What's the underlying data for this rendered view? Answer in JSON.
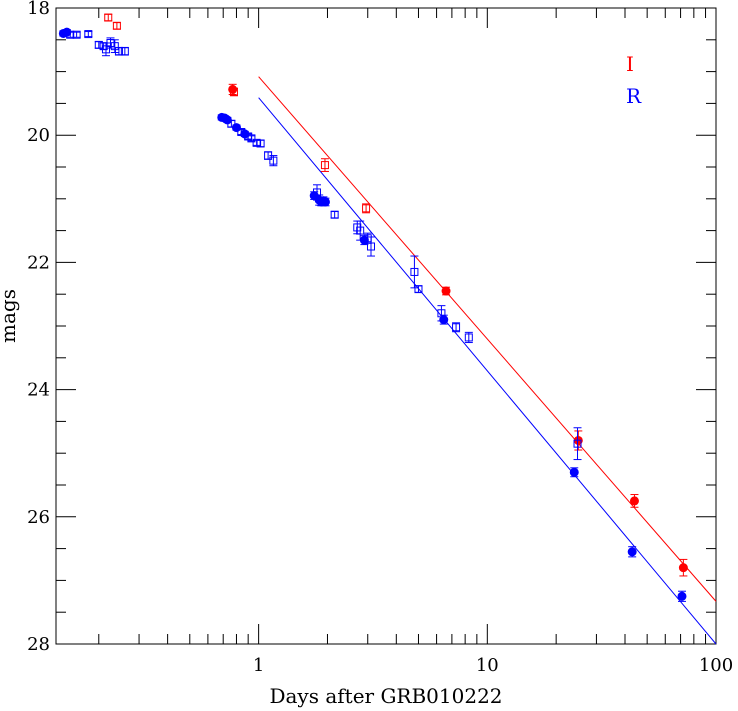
{
  "chart_data": {
    "type": "scatter",
    "title": "",
    "xlabel": "Days after GRB010222",
    "ylabel": "mags",
    "x_scale": "log",
    "xlim": [
      0.13,
      100
    ],
    "ylim": [
      28,
      18
    ],
    "y_inverted": true,
    "x_ticks": [
      1,
      10,
      100
    ],
    "x_tick_labels": [
      "1",
      "10",
      "100"
    ],
    "y_ticks": [
      18,
      20,
      22,
      24,
      26,
      28
    ],
    "y_tick_labels": [
      "18",
      "20",
      "22",
      "24",
      "26",
      "28"
    ],
    "grid": false,
    "legend_position": "top-right",
    "series": [
      {
        "name": "I",
        "color": "#ff0000",
        "points": [
          {
            "x": 0.22,
            "y": 18.15,
            "err": 0.05,
            "marker": "open-square"
          },
          {
            "x": 0.24,
            "y": 18.28,
            "err": 0.05,
            "marker": "open-square"
          },
          {
            "x": 0.77,
            "y": 19.28,
            "err": 0.08,
            "marker": "filled-circle"
          },
          {
            "x": 0.78,
            "y": 19.32,
            "err": 0.06,
            "marker": "open-square"
          },
          {
            "x": 1.95,
            "y": 20.47,
            "err": 0.1,
            "marker": "open-square"
          },
          {
            "x": 2.95,
            "y": 21.15,
            "err": 0.07,
            "marker": "open-square"
          },
          {
            "x": 6.6,
            "y": 22.45,
            "err": 0.06,
            "marker": "filled-circle"
          },
          {
            "x": 25.0,
            "y": 24.8,
            "err": 0.15,
            "marker": "filled-circle"
          },
          {
            "x": 44.0,
            "y": 25.75,
            "err": 0.1,
            "marker": "filled-circle"
          },
          {
            "x": 72.0,
            "y": 26.8,
            "err": 0.13,
            "marker": "filled-circle"
          }
        ],
        "fit_line": {
          "x": [
            1.0,
            100
          ],
          "y": [
            19.08,
            27.33
          ]
        }
      },
      {
        "name": "R",
        "color": "#0000ff",
        "points": [
          {
            "x": 0.14,
            "y": 18.4,
            "err": 0.04,
            "marker": "filled-circle"
          },
          {
            "x": 0.145,
            "y": 18.38,
            "err": 0.04,
            "marker": "filled-circle"
          },
          {
            "x": 0.15,
            "y": 18.42,
            "err": 0.04,
            "marker": "open-square"
          },
          {
            "x": 0.16,
            "y": 18.42,
            "err": 0.04,
            "marker": "open-square"
          },
          {
            "x": 0.18,
            "y": 18.41,
            "err": 0.04,
            "marker": "open-square"
          },
          {
            "x": 0.2,
            "y": 18.58,
            "err": 0.05,
            "marker": "open-square"
          },
          {
            "x": 0.21,
            "y": 18.6,
            "err": 0.05,
            "marker": "open-square"
          },
          {
            "x": 0.215,
            "y": 18.65,
            "err": 0.1,
            "marker": "open-square"
          },
          {
            "x": 0.225,
            "y": 18.55,
            "err": 0.08,
            "marker": "open-square"
          },
          {
            "x": 0.235,
            "y": 18.6,
            "err": 0.1,
            "marker": "open-square"
          },
          {
            "x": 0.245,
            "y": 18.68,
            "err": 0.06,
            "marker": "open-square"
          },
          {
            "x": 0.26,
            "y": 18.68,
            "err": 0.06,
            "marker": "open-square"
          },
          {
            "x": 0.69,
            "y": 19.72,
            "err": 0.04,
            "marker": "filled-circle"
          },
          {
            "x": 0.71,
            "y": 19.73,
            "err": 0.04,
            "marker": "filled-circle"
          },
          {
            "x": 0.73,
            "y": 19.76,
            "err": 0.04,
            "marker": "filled-circle"
          },
          {
            "x": 0.76,
            "y": 19.82,
            "err": 0.05,
            "marker": "open-square"
          },
          {
            "x": 0.8,
            "y": 19.88,
            "err": 0.04,
            "marker": "filled-circle"
          },
          {
            "x": 0.84,
            "y": 19.95,
            "err": 0.04,
            "marker": "open-square"
          },
          {
            "x": 0.87,
            "y": 19.98,
            "err": 0.04,
            "marker": "filled-circle"
          },
          {
            "x": 0.9,
            "y": 20.02,
            "err": 0.04,
            "marker": "open-square"
          },
          {
            "x": 0.93,
            "y": 20.05,
            "err": 0.04,
            "marker": "open-square"
          },
          {
            "x": 0.98,
            "y": 20.12,
            "err": 0.04,
            "marker": "open-square"
          },
          {
            "x": 1.02,
            "y": 20.13,
            "err": 0.05,
            "marker": "open-square"
          },
          {
            "x": 1.1,
            "y": 20.32,
            "err": 0.06,
            "marker": "open-square"
          },
          {
            "x": 1.16,
            "y": 20.4,
            "err": 0.08,
            "marker": "open-square"
          },
          {
            "x": 1.75,
            "y": 20.95,
            "err": 0.06,
            "marker": "filled-circle"
          },
          {
            "x": 1.8,
            "y": 20.9,
            "err": 0.12,
            "marker": "open-square"
          },
          {
            "x": 1.84,
            "y": 21.02,
            "err": 0.08,
            "marker": "filled-circle"
          },
          {
            "x": 1.88,
            "y": 21.05,
            "err": 0.06,
            "marker": "filled-circle"
          },
          {
            "x": 1.92,
            "y": 21.03,
            "err": 0.06,
            "marker": "filled-circle"
          },
          {
            "x": 1.96,
            "y": 21.05,
            "err": 0.06,
            "marker": "filled-circle"
          },
          {
            "x": 2.15,
            "y": 21.25,
            "err": 0.05,
            "marker": "open-square"
          },
          {
            "x": 2.7,
            "y": 21.45,
            "err": 0.1,
            "marker": "open-square"
          },
          {
            "x": 2.78,
            "y": 21.5,
            "err": 0.15,
            "marker": "open-square"
          },
          {
            "x": 2.9,
            "y": 21.65,
            "err": 0.07,
            "marker": "filled-circle"
          },
          {
            "x": 3.0,
            "y": 21.62,
            "err": 0.08,
            "marker": "open-square"
          },
          {
            "x": 3.1,
            "y": 21.75,
            "err": 0.15,
            "marker": "open-square"
          },
          {
            "x": 4.8,
            "y": 22.15,
            "err": 0.25,
            "marker": "open-square"
          },
          {
            "x": 5.0,
            "y": 22.42,
            "err": 0.05,
            "marker": "open-square"
          },
          {
            "x": 6.3,
            "y": 22.8,
            "err": 0.12,
            "marker": "open-square"
          },
          {
            "x": 6.45,
            "y": 22.9,
            "err": 0.07,
            "marker": "filled-circle"
          },
          {
            "x": 7.3,
            "y": 23.02,
            "err": 0.07,
            "marker": "open-square"
          },
          {
            "x": 8.3,
            "y": 23.18,
            "err": 0.08,
            "marker": "open-square"
          },
          {
            "x": 24.0,
            "y": 25.3,
            "err": 0.07,
            "marker": "filled-circle"
          },
          {
            "x": 24.8,
            "y": 24.85,
            "err": 0.25,
            "marker": "open-square"
          },
          {
            "x": 43.0,
            "y": 26.55,
            "err": 0.08,
            "marker": "filled-circle"
          },
          {
            "x": 71.0,
            "y": 27.25,
            "err": 0.08,
            "marker": "filled-circle"
          }
        ],
        "fit_line": {
          "x": [
            1.0,
            100
          ],
          "y": [
            19.41,
            28.0
          ]
        }
      }
    ]
  }
}
